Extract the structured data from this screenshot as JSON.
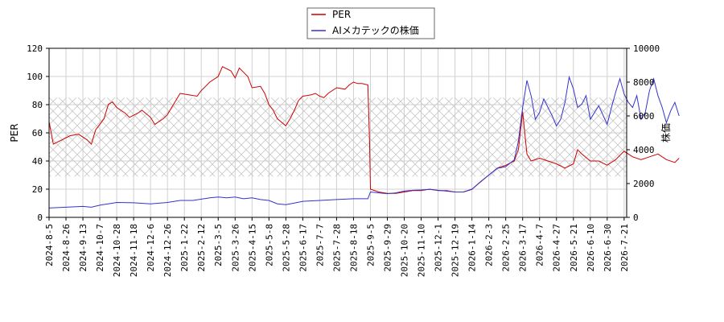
{
  "chart_data": {
    "type": "line",
    "ylabel_left": "PER",
    "ylabel_right": "株価",
    "ylim_left": [
      0,
      120
    ],
    "ylim_right": [
      0,
      10000
    ],
    "yticks_left": [
      "0",
      "20",
      "40",
      "60",
      "80",
      "100",
      "120"
    ],
    "yticks_right": [
      "0",
      "2000",
      "4000",
      "6000",
      "8000",
      "10000"
    ],
    "x_tick_labels": [
      "2024-8-5",
      "2024-8-26",
      "2024-9-13",
      "2024-10-7",
      "2024-10-28",
      "2024-11-18",
      "2024-12-6",
      "2024-12-26",
      "2025-1-22",
      "2025-2-12",
      "2025-3-5",
      "2025-3-26",
      "2025-4-15",
      "2025-5-8",
      "2025-5-28",
      "2025-6-17",
      "2025-7-7",
      "2025-7-28",
      "2025-8-18",
      "2025-9-5",
      "2025-9-29",
      "2025-10-20",
      "2025-11-10",
      "2025-12-1",
      "2025-12-19",
      "2026-1-14",
      "2026-2-3",
      "2026-2-25",
      "2026-3-17",
      "2026-4-7",
      "2026-4-27",
      "2026-5-21",
      "2026-6-10",
      "2026-6-30",
      "2026-7-21"
    ],
    "grid": true,
    "legend_position": "top-center",
    "band": {
      "axis": "left",
      "from": 29,
      "to": 85
    },
    "series": [
      {
        "name": "PER",
        "axis": "left",
        "color": "#cc0000",
        "values": [
          [
            0,
            68
          ],
          [
            0.5,
            52
          ],
          [
            1.5,
            55
          ],
          [
            2.5,
            58
          ],
          [
            3.5,
            59
          ],
          [
            4.5,
            55
          ],
          [
            5,
            52
          ],
          [
            5.5,
            62
          ],
          [
            6.5,
            70
          ],
          [
            7,
            80
          ],
          [
            7.5,
            82
          ],
          [
            8,
            78
          ],
          [
            9,
            74
          ],
          [
            9.5,
            71
          ],
          [
            10.5,
            74
          ],
          [
            11,
            76
          ],
          [
            12,
            71
          ],
          [
            12.5,
            66
          ],
          [
            13.5,
            70
          ],
          [
            14,
            73
          ],
          [
            14.5,
            78
          ],
          [
            15.5,
            88
          ],
          [
            16.5,
            87
          ],
          [
            17.5,
            86
          ],
          [
            18,
            90
          ],
          [
            18.5,
            93
          ],
          [
            19,
            96
          ],
          [
            20,
            100
          ],
          [
            20.5,
            107
          ],
          [
            21.5,
            104
          ],
          [
            22,
            99
          ],
          [
            22.5,
            106
          ],
          [
            23,
            103
          ],
          [
            23.5,
            100
          ],
          [
            24,
            92
          ],
          [
            25,
            93
          ],
          [
            25.5,
            88
          ],
          [
            26,
            80
          ],
          [
            26.5,
            76
          ],
          [
            27,
            70
          ],
          [
            28,
            65
          ],
          [
            28.5,
            70
          ],
          [
            29,
            76
          ],
          [
            29.5,
            83
          ],
          [
            30,
            86
          ],
          [
            31,
            87
          ],
          [
            31.5,
            88
          ],
          [
            32,
            86
          ],
          [
            32.5,
            85
          ],
          [
            33,
            88
          ],
          [
            34,
            92
          ],
          [
            35,
            91
          ],
          [
            35.5,
            94
          ],
          [
            36,
            96
          ],
          [
            36.5,
            95
          ],
          [
            37,
            95
          ],
          [
            37.7,
            94
          ],
          [
            37.9,
            54
          ],
          [
            38,
            20
          ],
          [
            39,
            18
          ],
          [
            40,
            17
          ],
          [
            41,
            17
          ],
          [
            42,
            18
          ],
          [
            43,
            19
          ],
          [
            44,
            19
          ],
          [
            45,
            20
          ],
          [
            46,
            19
          ],
          [
            47,
            19
          ],
          [
            48,
            18
          ],
          [
            49,
            18
          ],
          [
            50,
            20
          ],
          [
            51,
            25
          ],
          [
            52,
            30
          ],
          [
            53,
            35
          ],
          [
            54,
            37
          ],
          [
            55,
            40
          ],
          [
            55.5,
            48
          ],
          [
            56,
            75
          ],
          [
            56.5,
            45
          ],
          [
            57,
            40
          ],
          [
            58,
            42
          ],
          [
            59,
            40
          ],
          [
            60,
            38
          ],
          [
            61,
            35
          ],
          [
            62,
            38
          ],
          [
            62.5,
            48
          ],
          [
            63,
            45
          ],
          [
            64,
            40
          ],
          [
            65,
            40
          ],
          [
            66,
            37
          ],
          [
            67,
            41
          ],
          [
            68,
            47
          ],
          [
            69,
            43
          ],
          [
            70,
            41
          ],
          [
            71,
            43
          ],
          [
            72,
            45
          ],
          [
            73,
            41
          ],
          [
            74,
            39
          ],
          [
            74.5,
            42
          ]
        ]
      },
      {
        "name": "AIメカテックの株価",
        "axis": "right",
        "color": "#3333cc",
        "values": [
          [
            0,
            550
          ],
          [
            2,
            600
          ],
          [
            4,
            650
          ],
          [
            5,
            600
          ],
          [
            6,
            720
          ],
          [
            7,
            800
          ],
          [
            8,
            880
          ],
          [
            10,
            860
          ],
          [
            12,
            800
          ],
          [
            14,
            880
          ],
          [
            15.5,
            1000
          ],
          [
            17,
            1000
          ],
          [
            19,
            1150
          ],
          [
            20,
            1200
          ],
          [
            21,
            1150
          ],
          [
            22,
            1200
          ],
          [
            23,
            1100
          ],
          [
            24,
            1150
          ],
          [
            25,
            1050
          ],
          [
            26,
            1000
          ],
          [
            27,
            800
          ],
          [
            28,
            750
          ],
          [
            29,
            850
          ],
          [
            30,
            950
          ],
          [
            32,
            1000
          ],
          [
            34,
            1050
          ],
          [
            36,
            1100
          ],
          [
            37.7,
            1100
          ],
          [
            38,
            1500
          ],
          [
            39,
            1450
          ],
          [
            40,
            1400
          ],
          [
            41,
            1450
          ],
          [
            42,
            1550
          ],
          [
            43,
            1600
          ],
          [
            44,
            1620
          ],
          [
            45,
            1650
          ],
          [
            46,
            1600
          ],
          [
            47,
            1550
          ],
          [
            48,
            1500
          ],
          [
            49,
            1500
          ],
          [
            50,
            1650
          ],
          [
            51,
            2100
          ],
          [
            52,
            2500
          ],
          [
            53,
            2900
          ],
          [
            54,
            3000
          ],
          [
            55,
            3400
          ],
          [
            55.5,
            4500
          ],
          [
            56,
            6500
          ],
          [
            56.5,
            8100
          ],
          [
            57,
            7200
          ],
          [
            57.5,
            5800
          ],
          [
            58,
            6200
          ],
          [
            58.5,
            7000
          ],
          [
            59,
            6500
          ],
          [
            59.5,
            6000
          ],
          [
            60,
            5400
          ],
          [
            60.5,
            5800
          ],
          [
            61,
            6800
          ],
          [
            61.5,
            8300
          ],
          [
            62,
            7600
          ],
          [
            62.5,
            6500
          ],
          [
            63,
            6700
          ],
          [
            63.5,
            7200
          ],
          [
            64,
            5800
          ],
          [
            65,
            6600
          ],
          [
            66,
            5500
          ],
          [
            66.5,
            6500
          ],
          [
            67,
            7400
          ],
          [
            67.5,
            8200
          ],
          [
            68,
            7300
          ],
          [
            68.5,
            6800
          ],
          [
            69,
            6500
          ],
          [
            69.5,
            7200
          ],
          [
            70,
            5800
          ],
          [
            70.5,
            6200
          ],
          [
            71,
            7500
          ],
          [
            71.5,
            8200
          ],
          [
            72,
            7200
          ],
          [
            72.5,
            6500
          ],
          [
            73,
            5600
          ],
          [
            73.5,
            6300
          ],
          [
            74,
            6800
          ],
          [
            74.5,
            6000
          ]
        ]
      }
    ]
  }
}
